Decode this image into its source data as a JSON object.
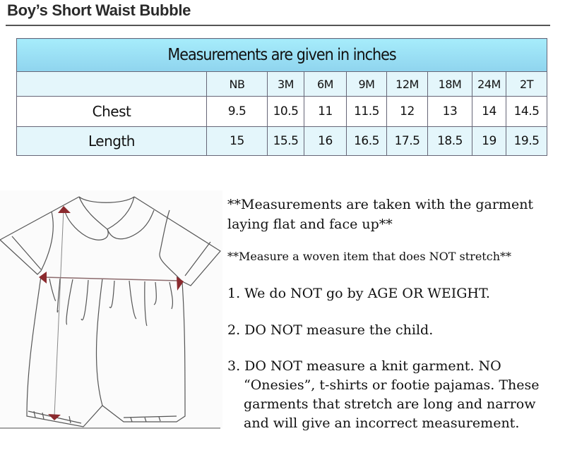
{
  "title": "Boy’s Short Waist Bubble",
  "table": {
    "caption": "Measurements are given in inches",
    "sizes": [
      "NB",
      "3M",
      "6M",
      "9M",
      "12M",
      "18M",
      "24M",
      "2T"
    ],
    "rows": [
      {
        "label": "Chest",
        "values": [
          "9.5",
          "10.5",
          "11",
          "11.5",
          "12",
          "13",
          "14",
          "14.5"
        ]
      },
      {
        "label": "Length",
        "values": [
          "15",
          "15.5",
          "16",
          "16.5",
          "17.5",
          "18.5",
          "19",
          "19.5"
        ]
      }
    ]
  },
  "notes": {
    "flat": "**Measurements are taken with the garment laying flat and face up**",
    "woven": "**Measure a woven item that does NOT stretch**",
    "items": [
      "1. We do NOT go by AGE OR WEIGHT.",
      "2. DO NOT measure the child.",
      "3. DO NOT measure a knit garment. NO “Onesies”, t-shirts or footie pajamas. These garments that stretch are long and narrow and will give an incorrect measurement."
    ]
  },
  "colors": {
    "header_band": "#9fe3f7",
    "row_tint": "#e4f6fb",
    "arrow": "#8b2a2e"
  }
}
